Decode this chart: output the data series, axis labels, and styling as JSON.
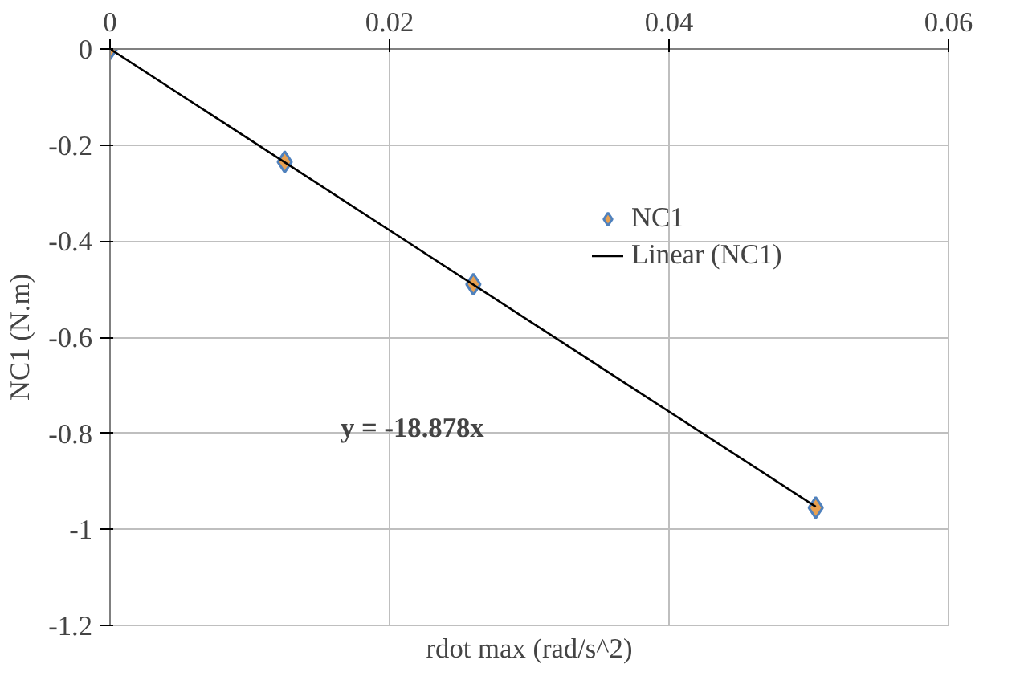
{
  "chart_data": {
    "type": "scatter",
    "xlabel": "rdot max (rad/s^2)",
    "ylabel": "NC1 (N.m)",
    "series": [
      {
        "name": "NC1",
        "marker": "diamond",
        "color": "#e8a050",
        "x": [
          0,
          0.0125,
          0.026,
          0.0505
        ],
        "values": [
          0,
          -0.235,
          -0.49,
          -0.955
        ]
      },
      {
        "name": "Linear (NC1)",
        "type": "line",
        "color": "#000000",
        "x": [
          0,
          0.0505
        ],
        "values": [
          0,
          -0.953
        ]
      }
    ],
    "annotations": [
      "y = -18.878x"
    ],
    "xlim": [
      0,
      0.06
    ],
    "xticks": [
      0,
      0.02,
      0.04,
      0.06
    ],
    "ylim": [
      -1.2,
      0
    ],
    "yticks": [
      -1.2,
      -1,
      -0.8,
      -0.6,
      -0.4,
      -0.2,
      0
    ],
    "grid": true,
    "legend": "top right"
  }
}
